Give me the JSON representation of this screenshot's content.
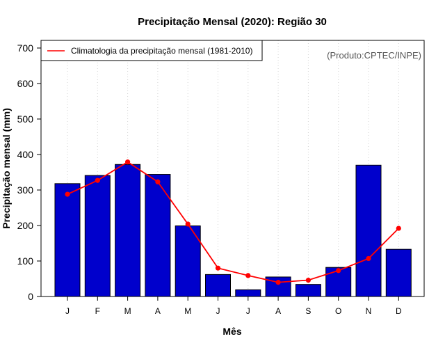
{
  "chart_data": {
    "type": "bar",
    "title": "Precipitação Mensal (2020): Região 30",
    "xlabel": "Mês",
    "ylabel": "Precipitação mensal (mm)",
    "source_note": "(Produto:CPTEC/INPE)",
    "categories": [
      "J",
      "F",
      "M",
      "A",
      "M",
      "J",
      "J",
      "A",
      "S",
      "O",
      "N",
      "D"
    ],
    "ylim": [
      0,
      700
    ],
    "yticks": [
      0,
      100,
      200,
      300,
      400,
      500,
      600,
      700
    ],
    "series": [
      {
        "name": "Precipitação mensal 2020",
        "type": "bar",
        "color": "#0000cc",
        "values": [
          318,
          341,
          372,
          344,
          199,
          62,
          19,
          55,
          34,
          82,
          370,
          133
        ]
      },
      {
        "name": "Climatologia da precipitação mensal (1981-2010)",
        "type": "line",
        "color": "#ff0000",
        "values": [
          288,
          327,
          379,
          323,
          204,
          80,
          59,
          40,
          46,
          73,
          107,
          192
        ]
      }
    ],
    "legend": {
      "position": "top-left",
      "entries": [
        "Climatologia da precipitação mensal (1981-2010)"
      ]
    },
    "grid": {
      "x": true,
      "y": false,
      "style": "dotted"
    }
  }
}
